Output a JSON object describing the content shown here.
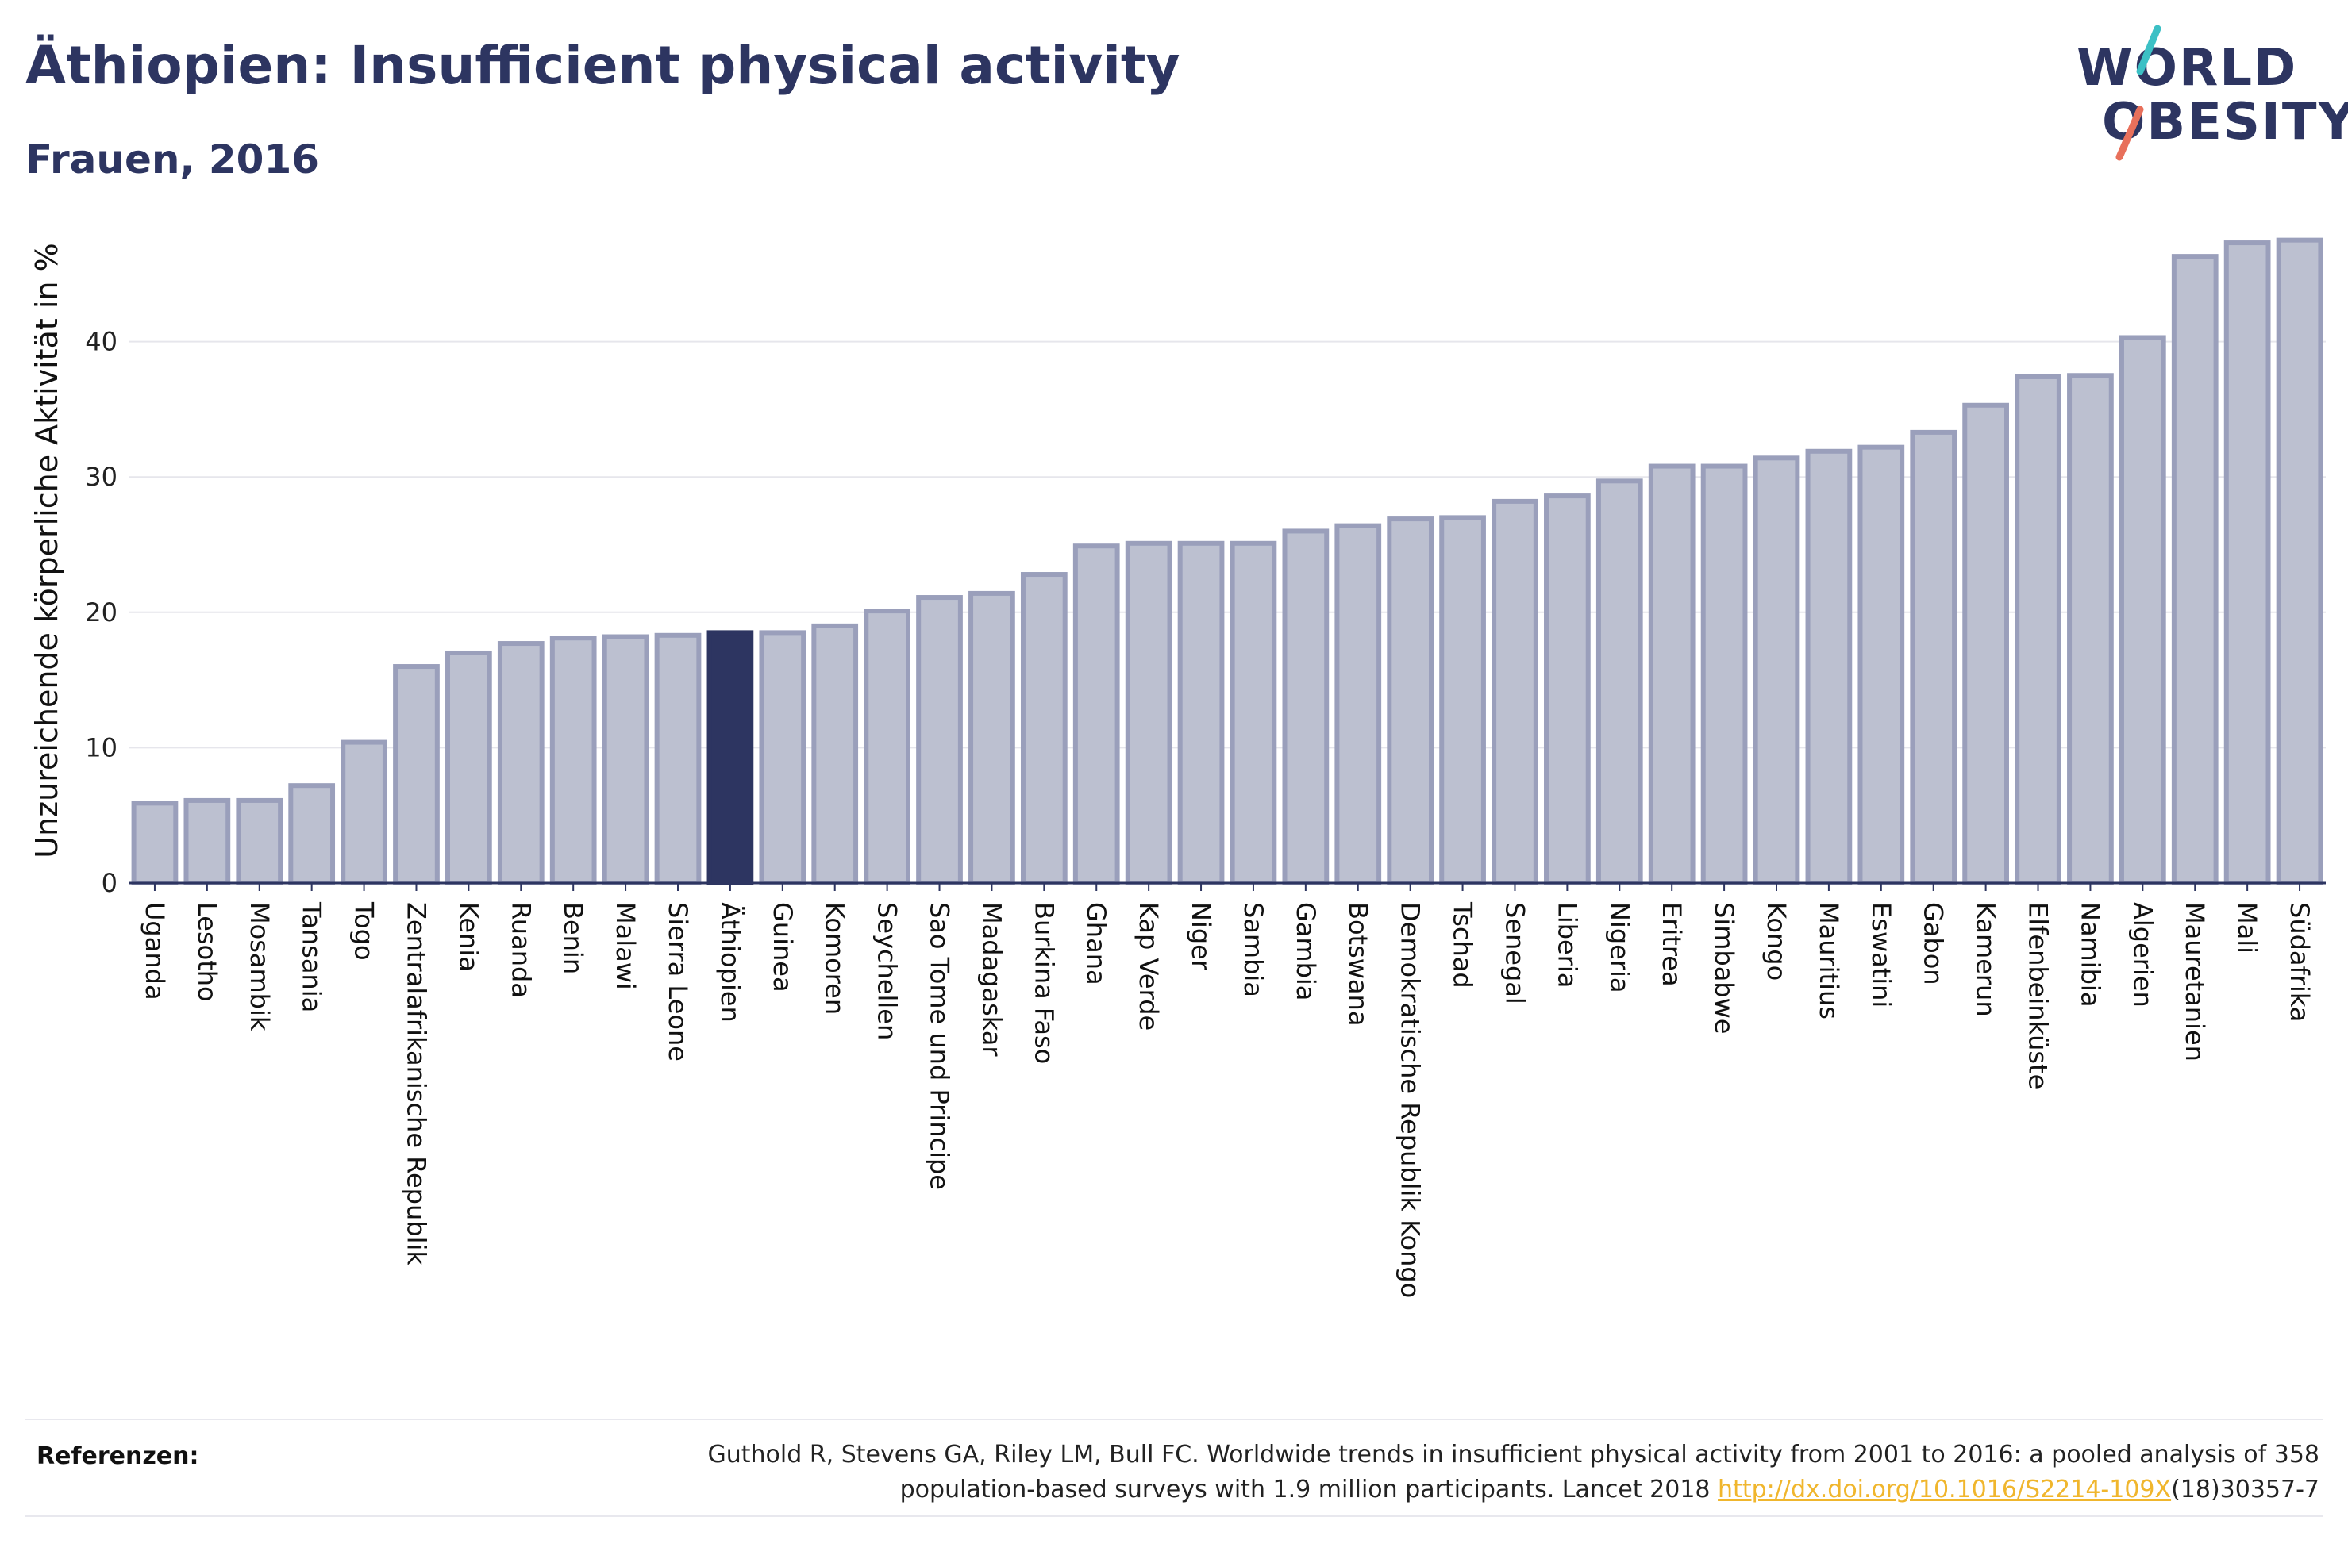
{
  "header": {
    "title": "Äthiopien: Insufficient physical activity",
    "subtitle": "Frauen, 2016"
  },
  "logo": {
    "line1": "WORLD",
    "line2": "OBESITY",
    "accent_teal": "#3cc0c5",
    "accent_coral": "#e8705b"
  },
  "chart_data": {
    "type": "bar",
    "title": "Äthiopien: Insufficient physical activity",
    "subtitle": "Frauen, 2016",
    "xlabel": "",
    "ylabel": "Unzureichende körperliche Aktivität in %",
    "ylim": [
      0,
      50
    ],
    "yticks": [
      0,
      10,
      20,
      30,
      40
    ],
    "grid": true,
    "highlight": "Äthiopien",
    "colors": {
      "bar": "#bcc0d0",
      "bar_border": "#9a9fbb",
      "highlight": "#2d3561"
    },
    "categories": [
      "Uganda",
      "Lesotho",
      "Mosambik",
      "Tansania",
      "Togo",
      "Zentralafrikanische Republik",
      "Kenia",
      "Ruanda",
      "Benin",
      "Malawi",
      "Sierra Leone",
      "Äthiopien",
      "Guinea",
      "Komoren",
      "Seychellen",
      "Sao Tome und Principe",
      "Madagaskar",
      "Burkina Faso",
      "Ghana",
      "Kap Verde",
      "Niger",
      "Sambia",
      "Gambia",
      "Botswana",
      "Demokratische Republik Kongo",
      "Tschad",
      "Senegal",
      "Liberia",
      "Nigeria",
      "Eritrea",
      "Simbabwe",
      "Kongo",
      "Mauritius",
      "Eswatini",
      "Gabon",
      "Kamerun",
      "Elfenbeinküste",
      "Namibia",
      "Algerien",
      "Mauretanien",
      "Mali",
      "Südafrika"
    ],
    "values": [
      5.9,
      6.1,
      6.1,
      7.2,
      10.4,
      16.0,
      17.0,
      17.7,
      18.1,
      18.2,
      18.3,
      18.5,
      18.5,
      19.0,
      20.1,
      21.1,
      21.4,
      22.8,
      24.9,
      25.1,
      25.1,
      25.1,
      26.0,
      26.4,
      26.9,
      27.0,
      28.2,
      28.6,
      29.7,
      30.8,
      30.8,
      31.4,
      31.9,
      32.2,
      33.3,
      35.3,
      37.4,
      37.5,
      40.3,
      46.3,
      47.3,
      47.5
    ]
  },
  "references": {
    "label": "Referenzen:",
    "text_line1": "Guthold R, Stevens GA, Riley LM, Bull FC. Worldwide trends in insufficient physical activity from 2001 to 2016: a pooled analysis of 358",
    "text_line2_prefix": "population-based surveys with 1.9 million participants. Lancet 2018 ",
    "link_text": "http://dx.doi.org/10.1016/S2214-109X",
    "text_line2_suffix": "(18)30357-7"
  }
}
